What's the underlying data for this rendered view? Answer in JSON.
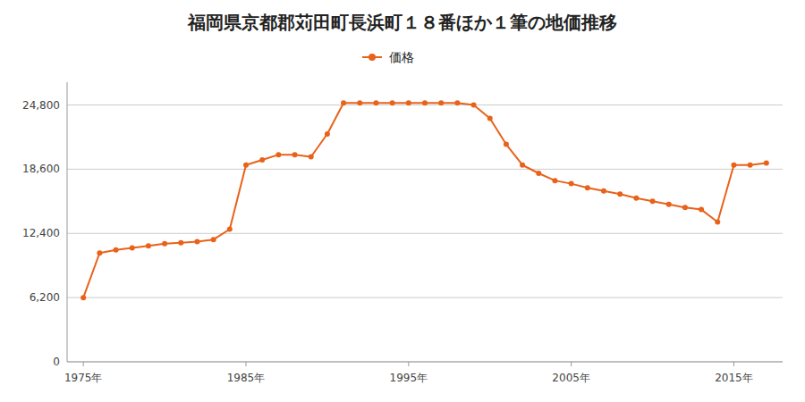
{
  "chart_data": {
    "type": "line",
    "title": "福岡県京都郡苅田町長浜町１８番ほか１筆の地価推移",
    "x": [
      1975,
      1976,
      1977,
      1978,
      1979,
      1980,
      1981,
      1982,
      1983,
      1984,
      1985,
      1986,
      1987,
      1988,
      1989,
      1990,
      1991,
      1992,
      1993,
      1994,
      1995,
      1996,
      1997,
      1998,
      1999,
      2000,
      2001,
      2002,
      2003,
      2004,
      2005,
      2006,
      2007,
      2008,
      2009,
      2010,
      2011,
      2012,
      2013,
      2014,
      2015,
      2016,
      2017
    ],
    "series": [
      {
        "name": "価格",
        "color": "#E8621A",
        "marker": "circle",
        "values": [
          6200,
          10500,
          10800,
          11000,
          11200,
          11400,
          11500,
          11600,
          11800,
          12800,
          19000,
          19500,
          20000,
          20000,
          19800,
          22000,
          25000,
          25000,
          25000,
          25000,
          25000,
          25000,
          25000,
          25000,
          24800,
          23500,
          21000,
          19000,
          18200,
          17500,
          17200,
          16800,
          16500,
          16200,
          15800,
          15500,
          15200,
          14900,
          14700,
          13500,
          19000,
          19000,
          19200
        ]
      }
    ],
    "xlim": [
      1974,
      2018
    ],
    "xticks": [
      {
        "value": 1975,
        "label": "1975年"
      },
      {
        "value": 1985,
        "label": "1985年"
      },
      {
        "value": 1995,
        "label": "1995年"
      },
      {
        "value": 2005,
        "label": "2005年"
      },
      {
        "value": 2015,
        "label": "2015年"
      }
    ],
    "ylim": [
      0,
      27000
    ],
    "yticks": [
      0,
      {
        "value": 6200,
        "label": "6,200"
      },
      {
        "value": 12400,
        "label": "12,400"
      },
      {
        "value": 18600,
        "label": "18,600"
      },
      {
        "value": 24800,
        "label": "24,800"
      }
    ],
    "grid": true,
    "legend": "top"
  }
}
